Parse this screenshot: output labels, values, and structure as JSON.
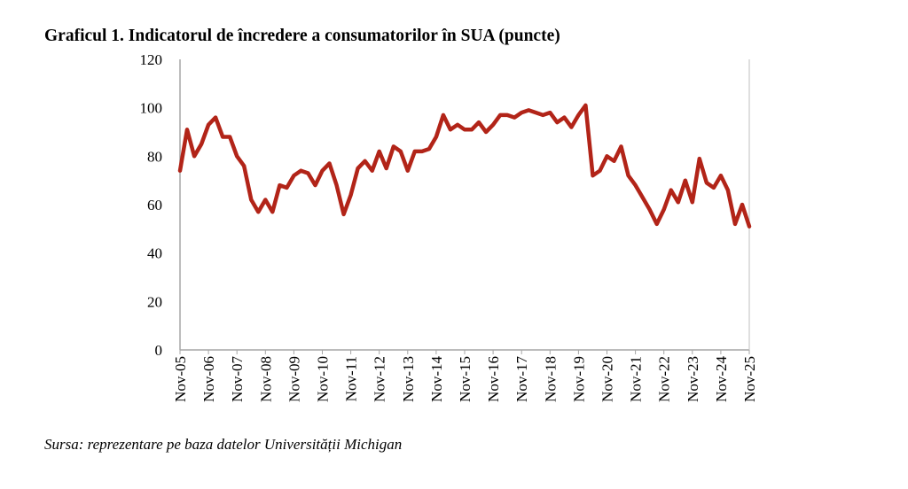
{
  "chart_data": {
    "type": "line",
    "title": "Graficul 1. Indicatorul de încredere a consumatorilor în SUA (puncte)",
    "source": "Sursa: reprezentare pe baza datelor Universității Michigan",
    "xlabel": "",
    "ylabel": "",
    "ylim": [
      0,
      120
    ],
    "yticks": [
      "0",
      "20",
      "40",
      "60",
      "80",
      "100",
      "120"
    ],
    "xticks": [
      "Nov-05",
      "Nov-06",
      "Nov-07",
      "Nov-08",
      "Nov-09",
      "Nov-10",
      "Nov-11",
      "Nov-12",
      "Nov-13",
      "Nov-14",
      "Nov-15",
      "Nov-16",
      "Nov-17",
      "Nov-18",
      "Nov-19",
      "Nov-20",
      "Nov-21",
      "Nov-22",
      "Nov-23",
      "Nov-24",
      "Nov-25"
    ],
    "grid": false,
    "series_color": "#b22418",
    "x_frequency": "quarterly from Nov-05",
    "values": [
      74,
      91,
      80,
      85,
      93,
      96,
      88,
      88,
      80,
      76,
      62,
      57,
      62,
      57,
      68,
      67,
      72,
      74,
      73,
      68,
      74,
      77,
      68,
      56,
      64,
      75,
      78,
      74,
      82,
      75,
      84,
      82,
      74,
      82,
      82,
      83,
      88,
      97,
      91,
      93,
      91,
      91,
      94,
      90,
      93,
      97,
      97,
      96,
      98,
      99,
      98,
      97,
      98,
      94,
      96,
      92,
      97,
      101,
      72,
      74,
      80,
      78,
      84,
      72,
      68,
      63,
      58,
      52,
      58,
      66,
      61,
      70,
      61,
      79,
      69,
      67,
      72,
      66,
      52,
      60,
      51
    ]
  }
}
